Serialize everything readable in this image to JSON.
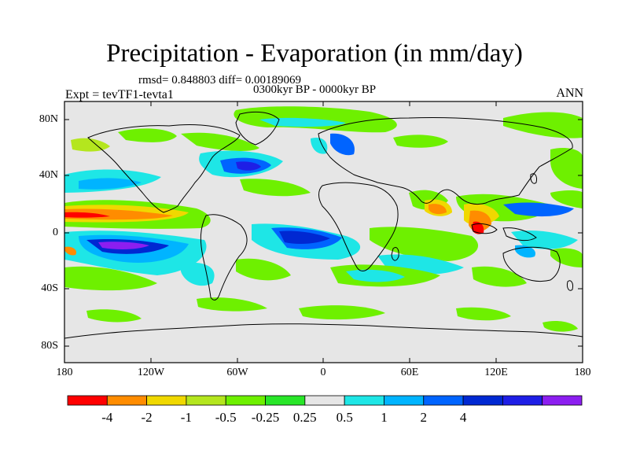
{
  "title": "Precipitation - Evaporation (in mm/day)",
  "stats": "rmsd= 0.848803 diff= 0.00189069",
  "period": "0300kyr BP - 0000kyr BP",
  "experiment": "Expt = tevTF1-tevta1",
  "season": "ANN",
  "lat_ticks": [
    "80N",
    "40N",
    "0",
    "40S",
    "80S"
  ],
  "lon_ticks": [
    "180",
    "120W",
    "60W",
    "0",
    "60E",
    "120E",
    "180"
  ],
  "colorbar": {
    "labels": [
      "-4",
      "-2",
      "-1",
      "-0.5",
      "-0.25",
      "0.25",
      "0.5",
      "1",
      "2",
      "4"
    ],
    "colors": [
      "#ff0000",
      "#ff8c00",
      "#f0d800",
      "#b4e61e",
      "#6ef000",
      "#28e628",
      "#e6e6e6",
      "#1ee6e6",
      "#00b4ff",
      "#0064ff",
      "#0028d2",
      "#1e1ee6",
      "#8c1ef0"
    ]
  },
  "map_colors": {
    "land": "#e6e6e6",
    "coast": "#000000"
  }
}
